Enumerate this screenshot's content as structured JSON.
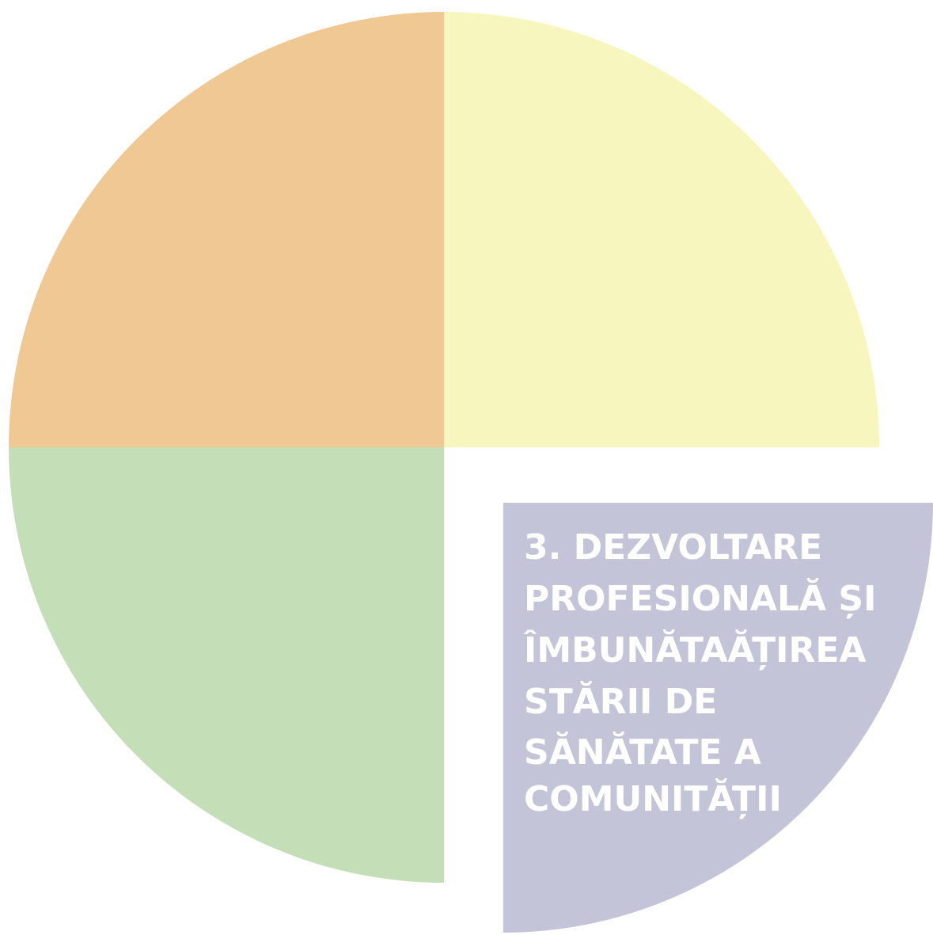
{
  "diagram": {
    "quadrants": [
      {
        "id": "top-left",
        "color": "#f0c894",
        "label_lines": []
      },
      {
        "id": "top-right",
        "color": "#f8f6bf",
        "label_lines": []
      },
      {
        "id": "bottom-left",
        "color": "#c4dfb8",
        "label_lines": []
      },
      {
        "id": "bottom-right",
        "color": "#c4c4d9",
        "label_lines": [
          "3. DEZVOLTARE",
          "PROFESIONALĂ ȘI",
          "ÎMBUNĂTAĂȚIREA",
          "STĂRII DE",
          "SĂNĂTATE A",
          "COMUNITĂȚII"
        ]
      }
    ]
  }
}
